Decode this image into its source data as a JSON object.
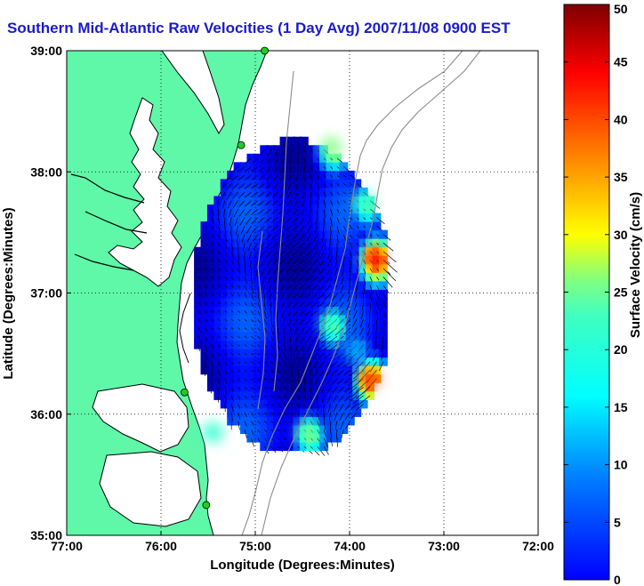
{
  "title": "Southern Mid-Atlantic Raw Velocities (1 Day Avg) 2007/11/08 0900 EST",
  "colors": {
    "title": "#1a1acc",
    "land": "#5ff7a8",
    "coast": "#000000",
    "bathymetry": "#8c8c8c",
    "station": "#22cc22",
    "arrow": "#000000"
  },
  "chart_data": {
    "type": "map",
    "xlabel": "Longitude (Degrees:Minutes)",
    "ylabel": "Latitude (Degrees:Minutes)",
    "xlim": [
      -77,
      -72
    ],
    "ylim": [
      35,
      39
    ],
    "grid": true,
    "x_ticks": [
      {
        "value": -77,
        "label": "77:00"
      },
      {
        "value": -76,
        "label": "76:00"
      },
      {
        "value": -75,
        "label": "75:00"
      },
      {
        "value": -74,
        "label": "74:00"
      },
      {
        "value": -73,
        "label": "73:00"
      },
      {
        "value": -72,
        "label": "72:00"
      }
    ],
    "y_ticks": [
      {
        "value": 35,
        "label": "35:00"
      },
      {
        "value": 36,
        "label": "36:00"
      },
      {
        "value": 37,
        "label": "37:00"
      },
      {
        "value": 38,
        "label": "38:00"
      },
      {
        "value": 39,
        "label": "39:00"
      }
    ],
    "colorbar": {
      "label": "Surface Velocity (cm/s)",
      "range": [
        0,
        50
      ],
      "ticks": [
        0,
        5,
        10,
        15,
        20,
        25,
        30,
        35,
        40,
        45,
        50
      ],
      "colormap": "jet"
    },
    "stations": [
      {
        "lon": -74.9,
        "lat": 39.0
      },
      {
        "lon": -75.15,
        "lat": 38.22
      },
      {
        "lon": -75.75,
        "lat": 36.18
      },
      {
        "lon": -75.52,
        "lat": 35.25
      }
    ],
    "velocity_field": {
      "extent_lon": [
        -75.65,
        -73.65
      ],
      "extent_lat": [
        35.7,
        38.3
      ],
      "hotspots": [
        {
          "lon": -73.75,
          "lat": 37.3,
          "speed": 42
        },
        {
          "lon": -73.8,
          "lat": 36.3,
          "speed": 40
        },
        {
          "lon": -74.2,
          "lat": 38.2,
          "speed": 25
        },
        {
          "lon": -73.85,
          "lat": 37.75,
          "speed": 22
        },
        {
          "lon": -74.2,
          "lat": 36.75,
          "speed": 22
        },
        {
          "lon": -74.45,
          "lat": 35.85,
          "speed": 24
        },
        {
          "lon": -75.45,
          "lat": 35.85,
          "speed": 21
        },
        {
          "lon": -73.95,
          "lat": 36.55,
          "speed": 14
        }
      ],
      "background_speed": 6
    }
  }
}
